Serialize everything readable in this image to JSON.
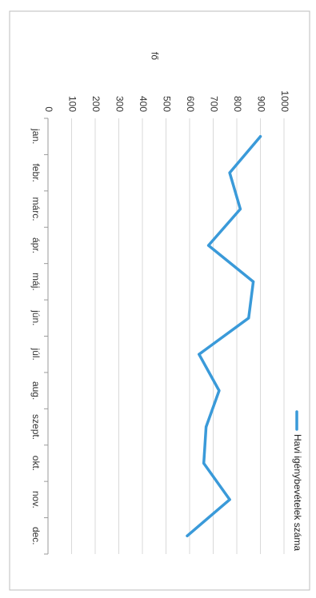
{
  "chart_data": {
    "type": "line",
    "orientation": "rotated 90° clockwise",
    "categories": [
      "jan.",
      "febr.",
      "márc.",
      "ápr.",
      "máj.",
      "jún.",
      "júl.",
      "aug.",
      "szept.",
      "okt.",
      "nov.",
      "dec."
    ],
    "series": [
      {
        "name": "Havi igénybevételek száma",
        "values": [
          900,
          770,
          815,
          680,
          870,
          850,
          640,
          725,
          670,
          660,
          770,
          590
        ],
        "color": "#3a9ad9"
      }
    ],
    "ylabel": "fő",
    "xlabel": "",
    "title": "",
    "ylim": [
      0,
      1000
    ],
    "yticks": [
      0,
      100,
      200,
      300,
      400,
      500,
      600,
      700,
      800,
      900,
      1000
    ],
    "grid": true,
    "legend_position": "right"
  }
}
